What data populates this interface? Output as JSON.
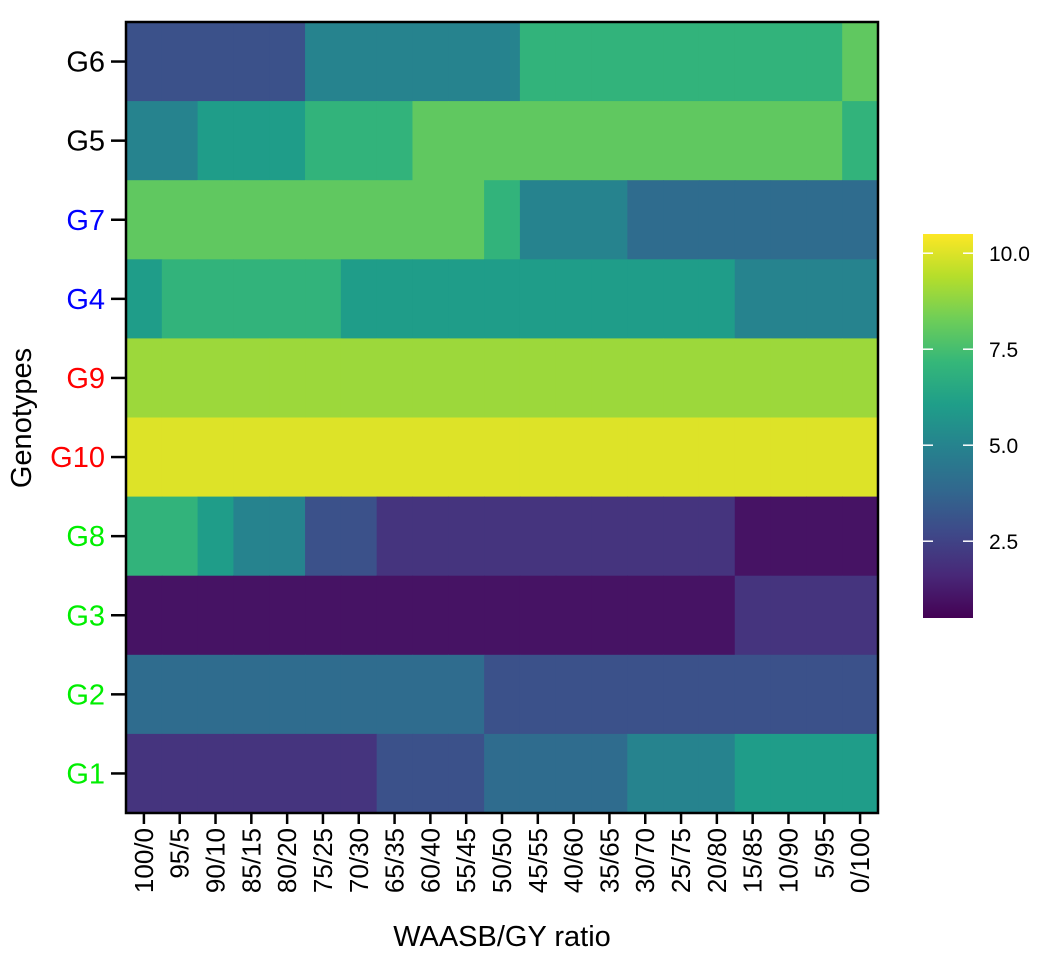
{
  "chart_data": {
    "type": "heatmap",
    "title": "",
    "xlabel": "WAASB/GY ratio",
    "ylabel": "Genotypes",
    "x_categories": [
      "100/0",
      "95/5",
      "90/10",
      "85/15",
      "80/20",
      "75/25",
      "70/30",
      "65/35",
      "60/40",
      "55/45",
      "50/50",
      "45/55",
      "40/60",
      "35/65",
      "30/70",
      "25/75",
      "20/80",
      "15/85",
      "10/90",
      "5/95",
      "0/100"
    ],
    "y_categories": [
      {
        "label": "G6",
        "color": "#000000"
      },
      {
        "label": "G5",
        "color": "#000000"
      },
      {
        "label": "G7",
        "color": "#0000ff"
      },
      {
        "label": "G4",
        "color": "#0000ff"
      },
      {
        "label": "G9",
        "color": "#ff0000"
      },
      {
        "label": "G10",
        "color": "#ff0000"
      },
      {
        "label": "G8",
        "color": "#00ee00"
      },
      {
        "label": "G3",
        "color": "#00ee00"
      },
      {
        "label": "G2",
        "color": "#00ee00"
      },
      {
        "label": "G1",
        "color": "#00ee00"
      }
    ],
    "values": [
      [
        3,
        3,
        3,
        3,
        3,
        5,
        5,
        5,
        5,
        5,
        5,
        7,
        7,
        7,
        7,
        7,
        7,
        7,
        7,
        7,
        8
      ],
      [
        5,
        5,
        6,
        6,
        6,
        7,
        7,
        7,
        8,
        8,
        8,
        8,
        8,
        8,
        8,
        8,
        8,
        8,
        8,
        8,
        7
      ],
      [
        8,
        8,
        8,
        8,
        8,
        8,
        8,
        8,
        8,
        8,
        7,
        5,
        5,
        5,
        4,
        4,
        4,
        4,
        4,
        4,
        4
      ],
      [
        6,
        7,
        7,
        7,
        7,
        7,
        6,
        6,
        6,
        6,
        6,
        6,
        6,
        6,
        6,
        6,
        6,
        5,
        5,
        5,
        5
      ],
      [
        9,
        9,
        9,
        9,
        9,
        9,
        9,
        9,
        9,
        9,
        9,
        9,
        9,
        9,
        9,
        9,
        9,
        9,
        9,
        9,
        9
      ],
      [
        10,
        10,
        10,
        10,
        10,
        10,
        10,
        10,
        10,
        10,
        10,
        10,
        10,
        10,
        10,
        10,
        10,
        10,
        10,
        10,
        10
      ],
      [
        7,
        7,
        6,
        5,
        5,
        3,
        3,
        2,
        2,
        2,
        2,
        2,
        2,
        2,
        2,
        2,
        2,
        1,
        1,
        1,
        1
      ],
      [
        1,
        1,
        1,
        1,
        1,
        1,
        1,
        1,
        1,
        1,
        1,
        1,
        1,
        1,
        1,
        1,
        1,
        2,
        2,
        2,
        2
      ],
      [
        4,
        4,
        4,
        4,
        4,
        4,
        4,
        4,
        4,
        4,
        3,
        3,
        3,
        3,
        3,
        3,
        3,
        3,
        3,
        3,
        3
      ],
      [
        2,
        2,
        2,
        2,
        2,
        2,
        2,
        3,
        3,
        3,
        4,
        4,
        4,
        4,
        5,
        5,
        5,
        6,
        6,
        6,
        6
      ]
    ],
    "color_scale": {
      "name": "viridis",
      "min": 0.5,
      "max": 10.5,
      "ticks": [
        2.5,
        5.0,
        7.5,
        10.0
      ],
      "tick_labels": [
        "2.5",
        "5.0",
        "7.5",
        "10.0"
      ],
      "stops": [
        "#440154",
        "#482878",
        "#3e4989",
        "#31688e",
        "#26828e",
        "#1f9e89",
        "#35b779",
        "#6ece58",
        "#b5de2b",
        "#fde725"
      ]
    },
    "legend_position": "right"
  }
}
